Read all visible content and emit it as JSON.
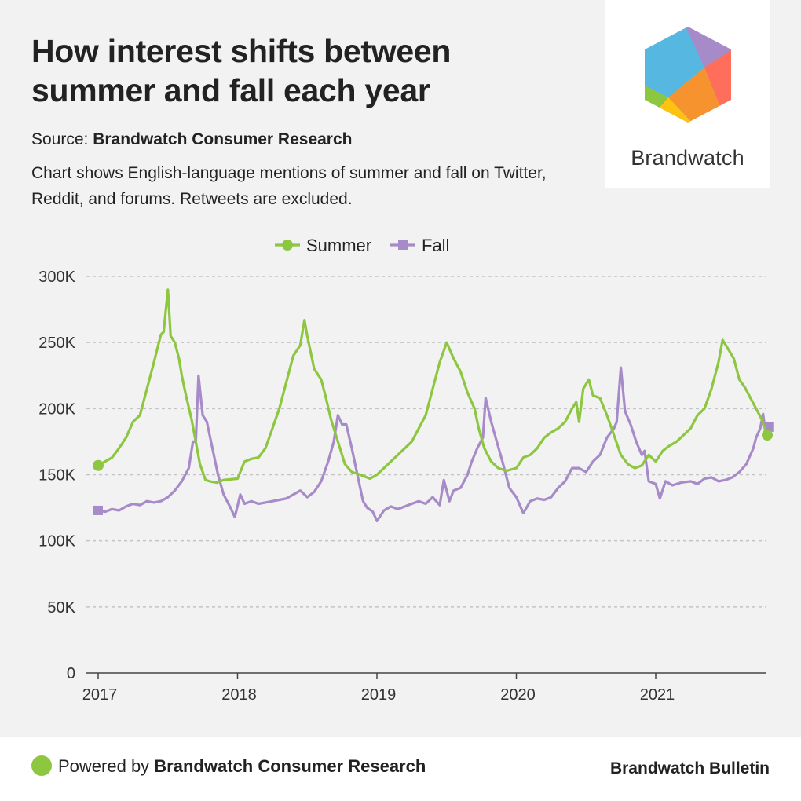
{
  "header": {
    "title": "How interest shifts between summer and fall each year",
    "source_label": "Source: ",
    "source_name": "Brandwatch Consumer Research",
    "description": "Chart shows English-language mentions of summer and fall on Twitter, Reddit, and forums. Retweets are excluded."
  },
  "logo": {
    "wordmark": "Brandwatch",
    "colors": [
      "#56b8e0",
      "#a78bc9",
      "#ff6e5a",
      "#f7932f",
      "#ffc20e",
      "#8dc63f"
    ]
  },
  "footer": {
    "powered_prefix": "Powered by ",
    "powered_name": "Brandwatch Consumer Research",
    "brand": "Brandwatch Bulletin"
  },
  "chart_data": {
    "type": "line",
    "title": "",
    "xlabel": "",
    "ylabel": "",
    "x_ticks": [
      "2017",
      "2018",
      "2019",
      "2020",
      "2021"
    ],
    "y_ticks": [
      "0",
      "50K",
      "100K",
      "150K",
      "200K",
      "250K",
      "300K"
    ],
    "ylim": [
      0,
      300000
    ],
    "xlim": [
      2017.0,
      2021.85
    ],
    "grid": true,
    "legend_position": "top-center",
    "series": [
      {
        "name": "Summer",
        "color": "#8dc63f",
        "marker": "circle",
        "points": [
          [
            2017.0,
            157000
          ],
          [
            2017.05,
            160000
          ],
          [
            2017.1,
            163000
          ],
          [
            2017.15,
            170000
          ],
          [
            2017.2,
            178000
          ],
          [
            2017.25,
            190000
          ],
          [
            2017.3,
            195000
          ],
          [
            2017.35,
            215000
          ],
          [
            2017.4,
            235000
          ],
          [
            2017.45,
            256000
          ],
          [
            2017.47,
            258000
          ],
          [
            2017.5,
            290000
          ],
          [
            2017.52,
            255000
          ],
          [
            2017.55,
            250000
          ],
          [
            2017.58,
            238000
          ],
          [
            2017.6,
            225000
          ],
          [
            2017.63,
            210000
          ],
          [
            2017.67,
            192000
          ],
          [
            2017.7,
            175000
          ],
          [
            2017.73,
            158000
          ],
          [
            2017.77,
            146000
          ],
          [
            2017.8,
            145000
          ],
          [
            2017.85,
            144000
          ],
          [
            2017.9,
            146000
          ],
          [
            2018.0,
            147000
          ],
          [
            2018.05,
            160000
          ],
          [
            2018.1,
            162000
          ],
          [
            2018.15,
            163000
          ],
          [
            2018.2,
            170000
          ],
          [
            2018.25,
            185000
          ],
          [
            2018.3,
            200000
          ],
          [
            2018.35,
            220000
          ],
          [
            2018.4,
            240000
          ],
          [
            2018.45,
            248000
          ],
          [
            2018.48,
            267000
          ],
          [
            2018.5,
            255000
          ],
          [
            2018.55,
            230000
          ],
          [
            2018.6,
            222000
          ],
          [
            2018.63,
            210000
          ],
          [
            2018.67,
            192000
          ],
          [
            2018.72,
            175000
          ],
          [
            2018.77,
            158000
          ],
          [
            2018.82,
            152000
          ],
          [
            2018.88,
            150000
          ],
          [
            2018.95,
            147000
          ],
          [
            2019.0,
            150000
          ],
          [
            2019.05,
            155000
          ],
          [
            2019.1,
            160000
          ],
          [
            2019.15,
            165000
          ],
          [
            2019.2,
            170000
          ],
          [
            2019.25,
            175000
          ],
          [
            2019.3,
            185000
          ],
          [
            2019.35,
            195000
          ],
          [
            2019.4,
            215000
          ],
          [
            2019.45,
            235000
          ],
          [
            2019.5,
            250000
          ],
          [
            2019.55,
            238000
          ],
          [
            2019.6,
            228000
          ],
          [
            2019.65,
            212000
          ],
          [
            2019.7,
            200000
          ],
          [
            2019.73,
            185000
          ],
          [
            2019.77,
            170000
          ],
          [
            2019.82,
            160000
          ],
          [
            2019.87,
            155000
          ],
          [
            2019.93,
            153000
          ],
          [
            2020.0,
            155000
          ],
          [
            2020.05,
            163000
          ],
          [
            2020.1,
            165000
          ],
          [
            2020.15,
            170000
          ],
          [
            2020.2,
            178000
          ],
          [
            2020.25,
            182000
          ],
          [
            2020.3,
            185000
          ],
          [
            2020.35,
            190000
          ],
          [
            2020.4,
            200000
          ],
          [
            2020.43,
            205000
          ],
          [
            2020.45,
            190000
          ],
          [
            2020.48,
            215000
          ],
          [
            2020.52,
            222000
          ],
          [
            2020.55,
            210000
          ],
          [
            2020.6,
            208000
          ],
          [
            2020.65,
            195000
          ],
          [
            2020.7,
            180000
          ],
          [
            2020.75,
            165000
          ],
          [
            2020.8,
            158000
          ],
          [
            2020.85,
            155000
          ],
          [
            2020.9,
            157000
          ],
          [
            2020.95,
            165000
          ],
          [
            2021.0,
            160000
          ],
          [
            2021.05,
            168000
          ],
          [
            2021.1,
            172000
          ],
          [
            2021.15,
            175000
          ],
          [
            2021.2,
            180000
          ],
          [
            2021.25,
            185000
          ],
          [
            2021.3,
            195000
          ],
          [
            2021.35,
            200000
          ],
          [
            2021.4,
            215000
          ],
          [
            2021.45,
            235000
          ],
          [
            2021.48,
            252000
          ],
          [
            2021.52,
            245000
          ],
          [
            2021.56,
            238000
          ],
          [
            2021.6,
            222000
          ],
          [
            2021.64,
            216000
          ],
          [
            2021.68,
            208000
          ],
          [
            2021.72,
            200000
          ],
          [
            2021.76,
            192000
          ],
          [
            2021.78,
            186000
          ],
          [
            2021.8,
            180000
          ]
        ]
      },
      {
        "name": "Fall",
        "color": "#a78bc9",
        "marker": "square",
        "points": [
          [
            2017.0,
            123000
          ],
          [
            2017.05,
            122000
          ],
          [
            2017.1,
            124000
          ],
          [
            2017.15,
            123000
          ],
          [
            2017.2,
            126000
          ],
          [
            2017.25,
            128000
          ],
          [
            2017.3,
            127000
          ],
          [
            2017.35,
            130000
          ],
          [
            2017.4,
            129000
          ],
          [
            2017.45,
            130000
          ],
          [
            2017.5,
            133000
          ],
          [
            2017.55,
            138000
          ],
          [
            2017.6,
            145000
          ],
          [
            2017.65,
            155000
          ],
          [
            2017.68,
            175000
          ],
          [
            2017.7,
            175000
          ],
          [
            2017.72,
            225000
          ],
          [
            2017.75,
            195000
          ],
          [
            2017.78,
            190000
          ],
          [
            2017.82,
            170000
          ],
          [
            2017.86,
            150000
          ],
          [
            2017.9,
            135000
          ],
          [
            2017.95,
            125000
          ],
          [
            2017.98,
            118000
          ],
          [
            2018.02,
            135000
          ],
          [
            2018.05,
            128000
          ],
          [
            2018.1,
            130000
          ],
          [
            2018.15,
            128000
          ],
          [
            2018.2,
            129000
          ],
          [
            2018.25,
            130000
          ],
          [
            2018.3,
            131000
          ],
          [
            2018.35,
            132000
          ],
          [
            2018.4,
            135000
          ],
          [
            2018.45,
            138000
          ],
          [
            2018.5,
            133000
          ],
          [
            2018.55,
            137000
          ],
          [
            2018.6,
            145000
          ],
          [
            2018.65,
            160000
          ],
          [
            2018.69,
            175000
          ],
          [
            2018.72,
            195000
          ],
          [
            2018.75,
            188000
          ],
          [
            2018.78,
            188000
          ],
          [
            2018.82,
            170000
          ],
          [
            2018.86,
            150000
          ],
          [
            2018.9,
            130000
          ],
          [
            2018.93,
            125000
          ],
          [
            2018.97,
            122000
          ],
          [
            2019.0,
            115000
          ],
          [
            2019.05,
            123000
          ],
          [
            2019.1,
            126000
          ],
          [
            2019.15,
            124000
          ],
          [
            2019.2,
            126000
          ],
          [
            2019.25,
            128000
          ],
          [
            2019.3,
            130000
          ],
          [
            2019.35,
            128000
          ],
          [
            2019.4,
            133000
          ],
          [
            2019.45,
            127000
          ],
          [
            2019.48,
            146000
          ],
          [
            2019.52,
            130000
          ],
          [
            2019.55,
            138000
          ],
          [
            2019.6,
            140000
          ],
          [
            2019.65,
            150000
          ],
          [
            2019.68,
            160000
          ],
          [
            2019.72,
            170000
          ],
          [
            2019.76,
            178000
          ],
          [
            2019.78,
            208000
          ],
          [
            2019.82,
            190000
          ],
          [
            2019.86,
            175000
          ],
          [
            2019.9,
            160000
          ],
          [
            2019.95,
            140000
          ],
          [
            2020.0,
            133000
          ],
          [
            2020.05,
            121000
          ],
          [
            2020.1,
            130000
          ],
          [
            2020.15,
            132000
          ],
          [
            2020.2,
            131000
          ],
          [
            2020.25,
            133000
          ],
          [
            2020.3,
            140000
          ],
          [
            2020.35,
            145000
          ],
          [
            2020.4,
            155000
          ],
          [
            2020.45,
            155000
          ],
          [
            2020.5,
            152000
          ],
          [
            2020.55,
            160000
          ],
          [
            2020.6,
            165000
          ],
          [
            2020.65,
            178000
          ],
          [
            2020.7,
            185000
          ],
          [
            2020.72,
            190000
          ],
          [
            2020.75,
            231000
          ],
          [
            2020.78,
            198000
          ],
          [
            2020.82,
            188000
          ],
          [
            2020.86,
            175000
          ],
          [
            2020.9,
            165000
          ],
          [
            2020.92,
            168000
          ],
          [
            2020.95,
            145000
          ],
          [
            2021.0,
            143000
          ],
          [
            2021.03,
            132000
          ],
          [
            2021.07,
            145000
          ],
          [
            2021.12,
            142000
          ],
          [
            2021.18,
            144000
          ],
          [
            2021.25,
            145000
          ],
          [
            2021.3,
            143000
          ],
          [
            2021.35,
            147000
          ],
          [
            2021.4,
            148000
          ],
          [
            2021.45,
            145000
          ],
          [
            2021.5,
            146000
          ],
          [
            2021.55,
            148000
          ],
          [
            2021.6,
            152000
          ],
          [
            2021.65,
            158000
          ],
          [
            2021.7,
            170000
          ],
          [
            2021.72,
            178000
          ],
          [
            2021.75,
            185000
          ],
          [
            2021.77,
            196000
          ],
          [
            2021.79,
            180000
          ],
          [
            2021.81,
            186000
          ]
        ]
      }
    ]
  }
}
